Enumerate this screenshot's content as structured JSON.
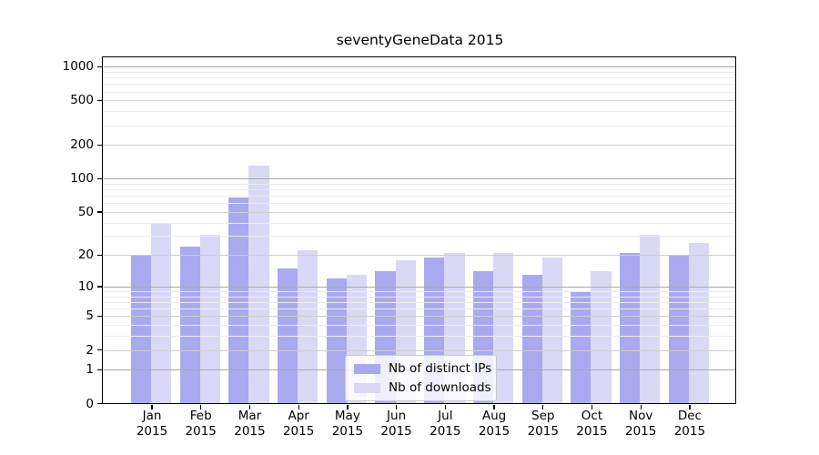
{
  "chart_data": {
    "type": "bar",
    "title": "seventyGeneData 2015",
    "categories": [
      "Jan 2015",
      "Feb 2015",
      "Mar 2015",
      "Apr 2015",
      "May 2015",
      "Jun 2015",
      "Jul 2015",
      "Aug 2015",
      "Sep 2015",
      "Oct 2015",
      "Nov 2015",
      "Dec 2015"
    ],
    "series": [
      {
        "name": "Nb of distinct IPs",
        "color": "#a9a9f0",
        "values": [
          20,
          24,
          68,
          15,
          12,
          14,
          19,
          14,
          13,
          9,
          21,
          20
        ]
      },
      {
        "name": "Nb of downloads",
        "color": "#d9d9f6",
        "values": [
          40,
          31,
          130,
          22,
          13,
          18,
          21,
          21,
          19,
          14,
          31,
          26
        ]
      }
    ],
    "xlabel": "",
    "ylabel": "",
    "y_axis": {
      "scale": "log10(value+1)",
      "tick_labels": [
        "0",
        "1",
        "2",
        "5",
        "10",
        "20",
        "50",
        "100",
        "200",
        "500",
        "1000"
      ],
      "tick_values": [
        0,
        1,
        2,
        5,
        10,
        20,
        50,
        100,
        200,
        500,
        1000
      ],
      "ylim": [
        0,
        1220
      ]
    },
    "grid": true,
    "legend_position": "lower-center",
    "colors": {
      "power_grid": "#a8a8a8",
      "major_grid": "#cdcdcd",
      "minor_grid": "#ececec",
      "axis": "#000000",
      "background": "#ffffff"
    }
  }
}
